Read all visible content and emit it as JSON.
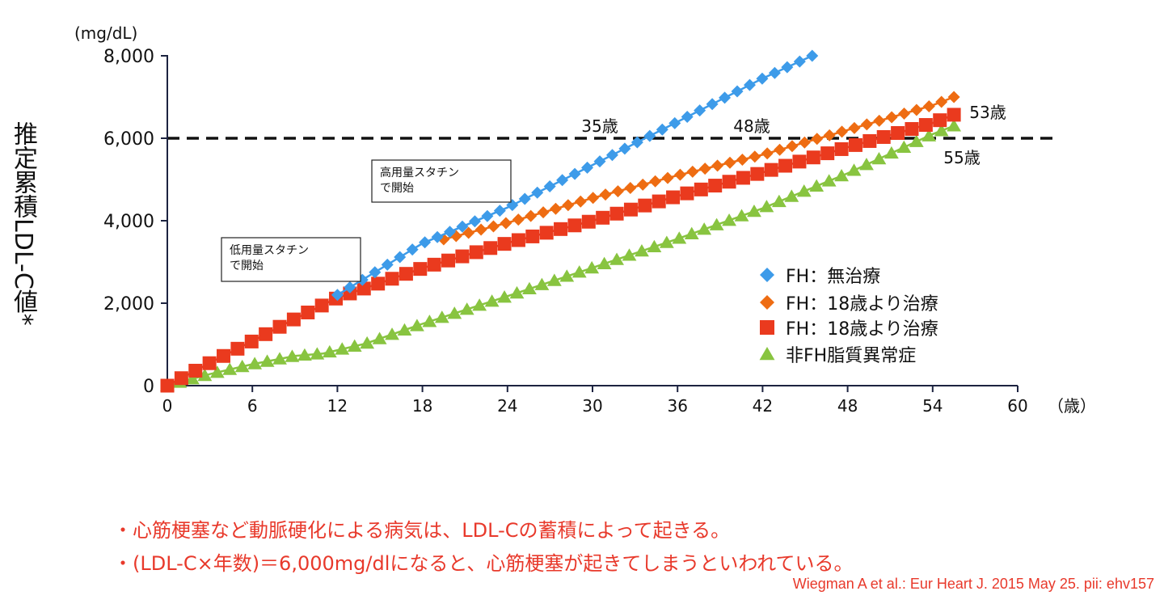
{
  "chart_data": {
    "type": "line",
    "title": "",
    "ylabel": "推定累積LDL-C値*",
    "yunit": "(mg/dL)",
    "xunit": "（歳）",
    "ylim": [
      0,
      8000
    ],
    "xlim": [
      0,
      60
    ],
    "yticks": [
      0,
      2000,
      4000,
      6000,
      8000
    ],
    "ytick_labels": [
      "0",
      "2,000",
      "4,000",
      "6,000",
      "8,000"
    ],
    "xticks": [
      0,
      6,
      12,
      18,
      24,
      30,
      36,
      42,
      48,
      54,
      60
    ],
    "xtick_labels": [
      "0",
      "6",
      "12",
      "18",
      "24",
      "30",
      "36",
      "42",
      "48",
      "54",
      "60"
    ],
    "threshold": {
      "y": 6000,
      "style": "dashed"
    },
    "series": [
      {
        "name": "FH：無治療",
        "marker": "diamond",
        "color": "#3d9be9",
        "x": [
          12,
          18,
          24,
          30,
          36,
          42,
          45.5
        ],
        "y": [
          2200,
          3450,
          4320,
          5350,
          6400,
          7450,
          8000
        ]
      },
      {
        "name": "FH：18歳より治療",
        "marker": "diamond",
        "color": "#ee6c12",
        "x": [
          19.5,
          24,
          30,
          36,
          42,
          48,
          54,
          55.5
        ],
        "y": [
          3550,
          3950,
          4550,
          5100,
          5600,
          6200,
          6800,
          7000
        ]
      },
      {
        "name": "FH：18歳より治療",
        "marker": "square",
        "color": "#ea3a1e",
        "x": [
          0,
          3,
          6,
          9,
          12,
          18,
          24,
          30,
          36,
          42,
          48,
          54,
          55.5
        ],
        "y": [
          0,
          550,
          1080,
          1620,
          2130,
          2850,
          3460,
          4000,
          4600,
          5170,
          5780,
          6370,
          6570
        ]
      },
      {
        "name": "非FH脂質異常症",
        "marker": "triangle",
        "color": "#88c440",
        "x": [
          0,
          3,
          6,
          9,
          11,
          14,
          18,
          24,
          30,
          36,
          42,
          48,
          54,
          55.5
        ],
        "y": [
          0,
          280,
          520,
          720,
          780,
          1020,
          1500,
          2170,
          2860,
          3560,
          4300,
          5150,
          6100,
          6300
        ]
      }
    ],
    "annotations": [
      {
        "text": "35歳",
        "x": 33.5,
        "y": 6000
      },
      {
        "text": "48歳",
        "x": 42.3,
        "y": 6000
      },
      {
        "text": "53歳",
        "x": 53.3,
        "y": 6000
      },
      {
        "text": "55歳",
        "x": 54.8,
        "y": 6000
      },
      {
        "text": "高用量スタチン\nで開始",
        "x": 18,
        "y": 3450
      },
      {
        "text": "低用量スタチン\nで開始",
        "x": 10,
        "y": 2200
      }
    ],
    "legend_position": "right"
  },
  "notes": [
    "・心筋梗塞など動脈硬化による病気は、LDL-Cの蓄積によって起きる。",
    "・(LDL-C×年数)＝6,000mg/dlになると、心筋梗塞が起きてしまうといわれている。"
  ],
  "citation": "Wiegman A et al.: Eur Heart J. 2015 May 25. pii: ehv157"
}
